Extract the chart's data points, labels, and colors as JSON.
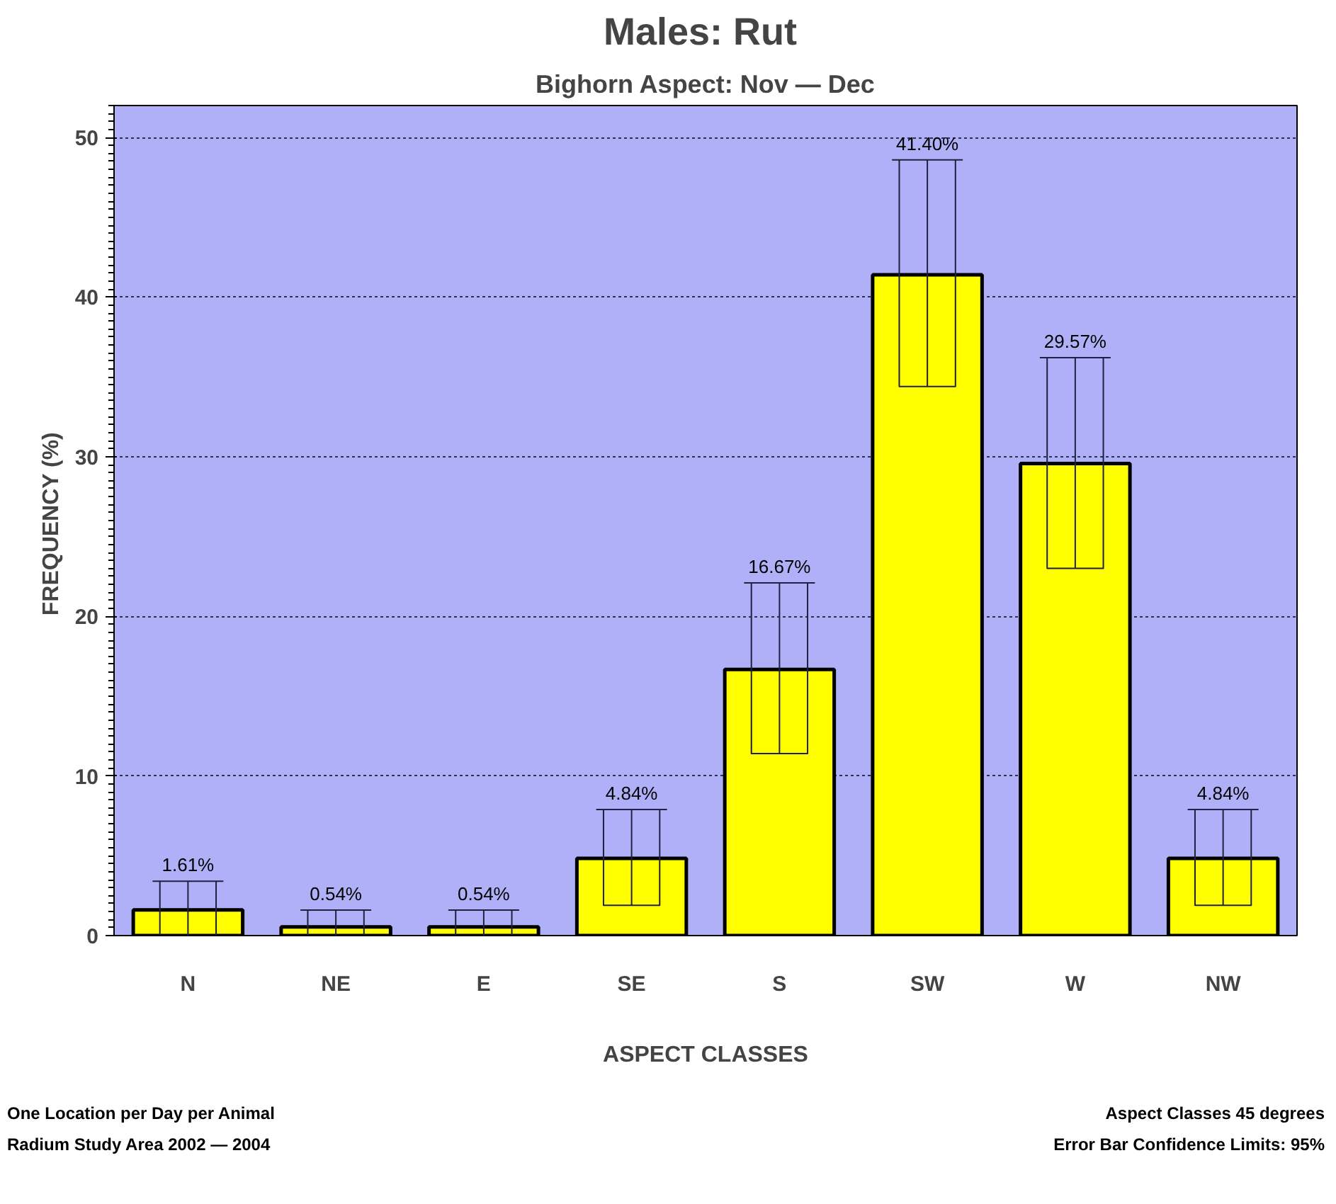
{
  "chart_data": {
    "type": "bar",
    "title": "Males:  Rut",
    "subtitle": "Bighorn Aspect: Nov — Dec",
    "xlabel": "ASPECT CLASSES",
    "ylabel": "FREQUENCY  (%)",
    "categories": [
      "N",
      "NE",
      "E",
      "SE",
      "S",
      "SW",
      "W",
      "NW"
    ],
    "values": [
      1.61,
      0.54,
      0.54,
      4.84,
      16.67,
      41.4,
      29.57,
      4.84
    ],
    "value_labels": [
      "1.61%",
      "0.54%",
      "0.54%",
      "4.84%",
      "16.67%",
      "41.40%",
      "29.57%",
      "4.84%"
    ],
    "errors": [
      [
        0,
        3.4
      ],
      [
        0,
        1.6
      ],
      [
        0,
        1.6
      ],
      [
        1.9,
        7.9
      ],
      [
        11.4,
        22.1
      ],
      [
        34.4,
        48.6
      ],
      [
        23.0,
        36.2
      ],
      [
        1.9,
        7.9
      ]
    ],
    "color": "#ffff00",
    "ylim": [
      0,
      52
    ],
    "yticks": [
      0,
      10,
      20,
      30,
      40,
      50
    ],
    "grid": "y",
    "annotations": [
      "One Location per Day per Animal",
      "Radium Study Area 2002 — 2004",
      "Aspect Classes 45 degrees",
      "Error Bar Confidence Limits: 95%"
    ]
  }
}
